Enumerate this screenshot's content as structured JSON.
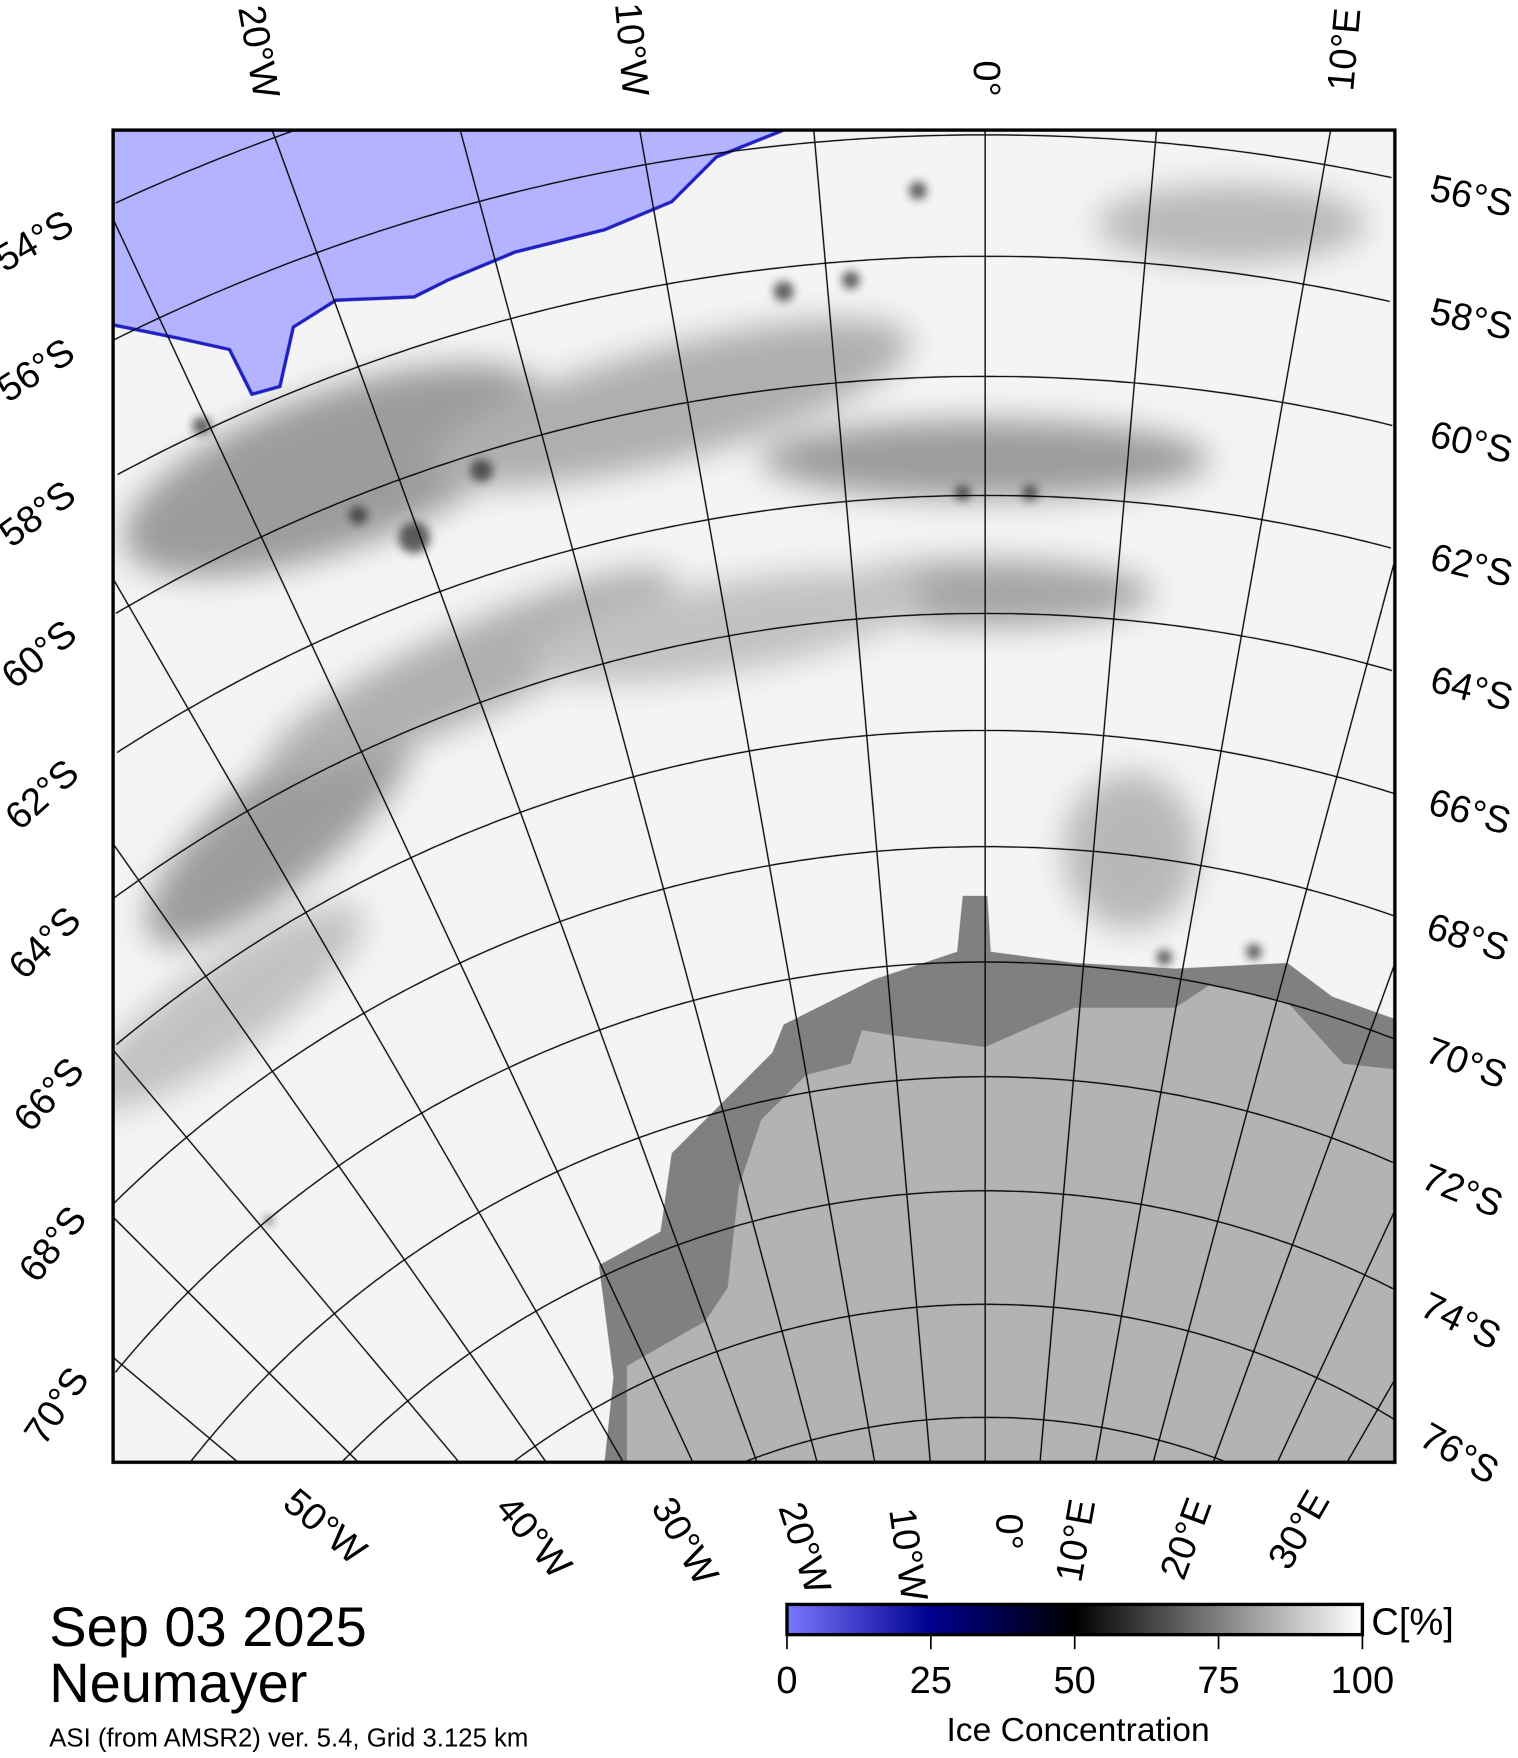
{
  "map": {
    "top_lon_labels": [
      "20°W",
      "10°W",
      "0°",
      "10°E"
    ],
    "right_lat_labels": [
      "56°S",
      "58°S",
      "60°S",
      "62°S",
      "64°S",
      "66°S",
      "68°S",
      "70°S",
      "72°S",
      "74°S",
      "76°S"
    ],
    "left_lat_labels": [
      "54°S",
      "56°S",
      "58°S",
      "60°S",
      "62°S",
      "64°S",
      "66°S",
      "68°S",
      "70°S"
    ],
    "bottom_lon_labels": [
      "50°W",
      "40°W",
      "30°W",
      "20°W",
      "10°W",
      "0°",
      "10°E",
      "20°E",
      "30°E"
    ],
    "colors": {
      "open_water": "#b3b3ff",
      "ice_shelf": "#808080",
      "land": "#b3b3b3",
      "ice": "#f4f4f4"
    }
  },
  "caption": {
    "date": "Sep 03 2025",
    "station": "Neumayer",
    "source": "ASI (from AMSR2) ver. 5.4,  Grid 3.125 km"
  },
  "colorbar": {
    "unit": "C[%]",
    "title": "Ice Concentration",
    "ticks": [
      "0",
      "25",
      "50",
      "75",
      "100"
    ]
  }
}
